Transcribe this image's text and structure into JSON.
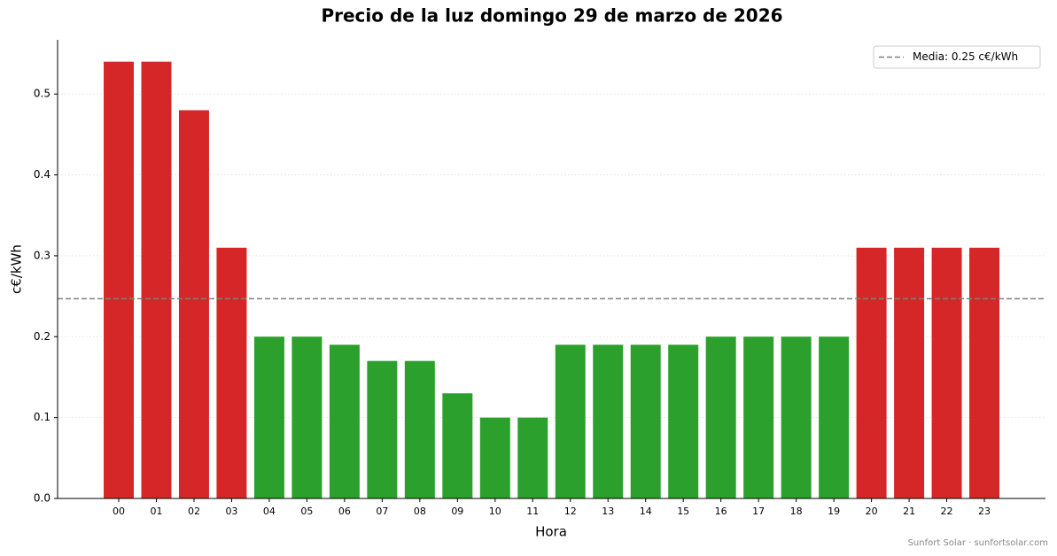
{
  "chart_data": {
    "type": "bar",
    "title": "Precio de la luz domingo 29 de marzo de 2026",
    "xlabel": "Hora",
    "ylabel": "c€/kWh",
    "categories": [
      "00",
      "01",
      "02",
      "03",
      "04",
      "05",
      "06",
      "07",
      "08",
      "09",
      "10",
      "11",
      "12",
      "13",
      "14",
      "15",
      "16",
      "17",
      "18",
      "19",
      "20",
      "21",
      "22",
      "23"
    ],
    "values": [
      0.54,
      0.54,
      0.48,
      0.31,
      0.2,
      0.2,
      0.19,
      0.17,
      0.17,
      0.13,
      0.1,
      0.1,
      0.19,
      0.19,
      0.19,
      0.19,
      0.2,
      0.2,
      0.2,
      0.2,
      0.31,
      0.31,
      0.31,
      0.31
    ],
    "colors": [
      "#d62728",
      "#d62728",
      "#d62728",
      "#d62728",
      "#2ca02c",
      "#2ca02c",
      "#2ca02c",
      "#2ca02c",
      "#2ca02c",
      "#2ca02c",
      "#2ca02c",
      "#2ca02c",
      "#2ca02c",
      "#2ca02c",
      "#2ca02c",
      "#2ca02c",
      "#2ca02c",
      "#2ca02c",
      "#2ca02c",
      "#2ca02c",
      "#d62728",
      "#d62728",
      "#d62728",
      "#d62728"
    ],
    "mean_line": {
      "value": 0.247,
      "label": "Media: 0.25 c€/kWh",
      "color": "#808080"
    },
    "ylim": [
      0,
      0.567
    ],
    "yticks": [
      {
        "value": 0,
        "label": "0.0"
      },
      0.1,
      0.2,
      0.3,
      0.4,
      0.5
    ],
    "grid": true,
    "legend_position": "upper-right",
    "footer": "Sunfort Solar · sunfortsolar.com"
  }
}
